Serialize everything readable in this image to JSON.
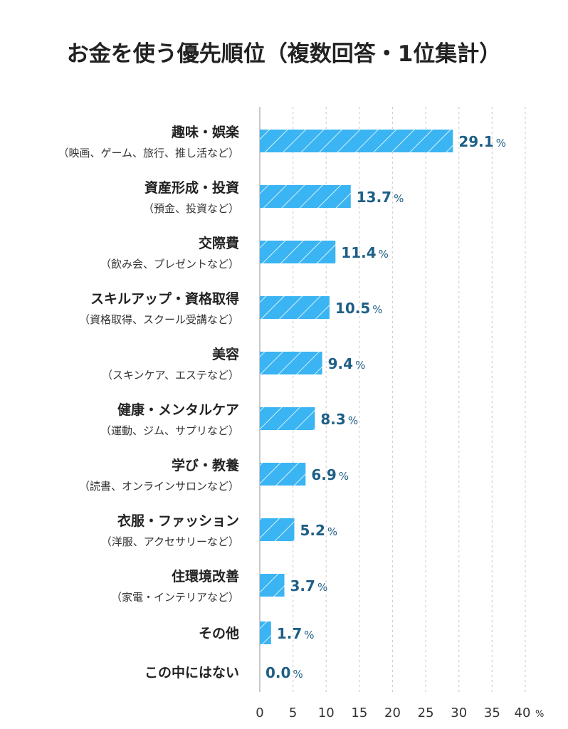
{
  "chart_data": {
    "type": "bar",
    "orientation": "horizontal",
    "title": "お金を使う優先順位（複数回答・1位集計）",
    "categories": [
      {
        "label": "趣味・娯楽",
        "sublabel": "（映画、ゲーム、旅行、推し活など）",
        "value": 29.1
      },
      {
        "label": "資産形成・投資",
        "sublabel": "（預金、投資など）",
        "value": 13.7
      },
      {
        "label": "交際費",
        "sublabel": "（飲み会、プレゼントなど）",
        "value": 11.4
      },
      {
        "label": "スキルアップ・資格取得",
        "sublabel": "（資格取得、スクール受講など）",
        "value": 10.5
      },
      {
        "label": "美容",
        "sublabel": "（スキンケア、エステなど）",
        "value": 9.4
      },
      {
        "label": "健康・メンタルケア",
        "sublabel": "（運動、ジム、サプリなど）",
        "value": 8.3
      },
      {
        "label": "学び・教養",
        "sublabel": "（読書、オンラインサロンなど）",
        "value": 6.9
      },
      {
        "label": "衣服・ファッション",
        "sublabel": "（洋服、アクセサリーなど）",
        "value": 5.2
      },
      {
        "label": "住環境改善",
        "sublabel": "（家電・インテリアなど）",
        "value": 3.7
      },
      {
        "label": "その他",
        "sublabel": "",
        "value": 1.7
      },
      {
        "label": "この中にはない",
        "sublabel": "",
        "value": 0.0
      }
    ],
    "value_unit": "%",
    "value_labels": [
      "29.1",
      "13.7",
      "11.4",
      "10.5",
      "9.4",
      "8.3",
      "6.9",
      "5.2",
      "3.7",
      "1.7",
      "0.0"
    ],
    "xlim": [
      0,
      40
    ],
    "xticks": [
      "0",
      "5",
      "10",
      "15",
      "20",
      "25",
      "30",
      "35",
      "40"
    ],
    "xtick_unit": "%",
    "grid": true,
    "grid_style": "dotted",
    "bar_color": "#3ab4f2",
    "bar_hatch_color": "#ffffff",
    "value_label_color": "#1e5f86"
  }
}
